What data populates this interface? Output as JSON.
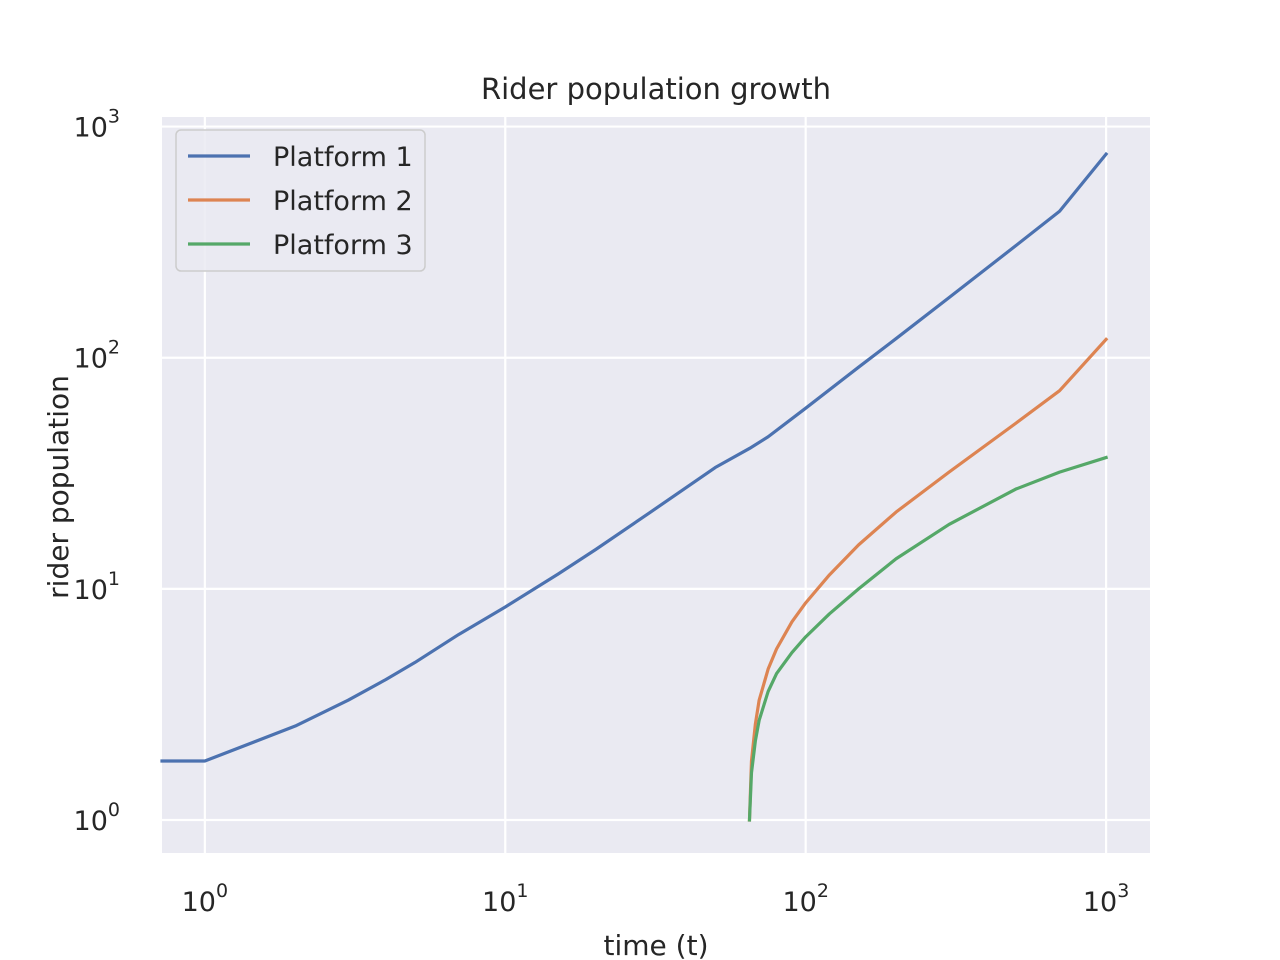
{
  "chart_data": {
    "type": "line",
    "title": "Rider population growth",
    "xlabel": "time (t)",
    "ylabel": "rider population",
    "xscale": "log",
    "yscale": "log",
    "xlim": [
      0.72,
      1400
    ],
    "ylim": [
      0.72,
      1100
    ],
    "grid": true,
    "legend_position": "top-left",
    "x_ticks": [
      {
        "base": "10",
        "exp": "0",
        "value": 1
      },
      {
        "base": "10",
        "exp": "1",
        "value": 10
      },
      {
        "base": "10",
        "exp": "2",
        "value": 100
      },
      {
        "base": "10",
        "exp": "3",
        "value": 1000
      }
    ],
    "y_ticks": [
      {
        "base": "10",
        "exp": "0",
        "value": 1
      },
      {
        "base": "10",
        "exp": "1",
        "value": 10
      },
      {
        "base": "10",
        "exp": "2",
        "value": 100
      },
      {
        "base": "10",
        "exp": "3",
        "value": 1000
      }
    ],
    "series": [
      {
        "name": "Platform 1",
        "color": "#4c72b0",
        "x": [
          0.72,
          1,
          2,
          3,
          4,
          5,
          7,
          10,
          15,
          20,
          30,
          50,
          65,
          75,
          100,
          150,
          200,
          300,
          500,
          700,
          1000
        ],
        "y": [
          1.8,
          1.8,
          2.55,
          3.3,
          4.05,
          4.8,
          6.35,
          8.35,
          11.6,
          14.8,
          21.2,
          33.5,
          40.5,
          45.5,
          60.5,
          91,
          121,
          182,
          305,
          430,
          760
        ]
      },
      {
        "name": "Platform 2",
        "color": "#dd8452",
        "x": [
          65,
          66,
          68,
          70,
          75,
          80,
          90,
          100,
          120,
          150,
          200,
          300,
          500,
          700,
          1000
        ],
        "y": [
          1,
          1.8,
          2.6,
          3.3,
          4.5,
          5.5,
          7.2,
          8.7,
          11.5,
          15.5,
          21.5,
          32,
          52,
          72,
          120
        ]
      },
      {
        "name": "Platform 3",
        "color": "#55a868",
        "x": [
          65,
          66,
          68,
          70,
          75,
          80,
          90,
          100,
          120,
          150,
          200,
          300,
          500,
          700,
          1000
        ],
        "y": [
          1,
          1.6,
          2.2,
          2.7,
          3.6,
          4.3,
          5.3,
          6.2,
          7.8,
          10,
          13.5,
          19,
          27,
          32,
          37
        ]
      }
    ]
  }
}
